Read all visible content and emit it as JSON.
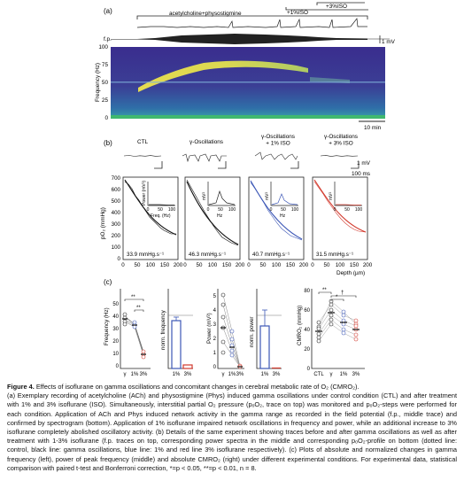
{
  "figure": {
    "panel_a": {
      "label": "(a)",
      "bar_label_ach": "acetylcholine+physostigmine",
      "bar_label_iso1": "+1%ISO",
      "bar_label_iso3": "+3%ISO",
      "fp_label": "f.p.",
      "po2_label": "pO",
      "scale_mv": "1 mV",
      "y_axis_label": "Frequency (Hz)",
      "y_ticks": [
        "100",
        "75",
        "50",
        "25",
        "0"
      ],
      "scale_time": "10 min"
    },
    "panel_b": {
      "label": "(b)",
      "conditions": [
        "CTL",
        "γ-Oscillations",
        "γ-Oscillations\n+ 1% ISO",
        "γ-Oscillations\n+ 3% ISO"
      ],
      "scale_mv": "1 mV",
      "scale_ms": "100 ms",
      "y_axis_label": "pO₂ (mmHg)",
      "y_ticks": [
        "700",
        "600",
        "500",
        "400",
        "300",
        "200",
        "100",
        "0"
      ],
      "x_ticks": [
        "0",
        "50",
        "100",
        "150",
        "200"
      ],
      "x_label": "Depth (µm)",
      "inset_ylabel_first": "Power (mV²)",
      "inset_ylabel": "mV²",
      "inset_xlabel_first": "Freq. (Hz)",
      "inset_xlabel": "Hz",
      "inset_ticks": [
        "0",
        "50",
        "100"
      ],
      "cmro2_values": [
        "33.9 mmHg.s⁻¹",
        "46.3 mmHg.s⁻¹",
        "40.7 mmHg.s⁻¹",
        "31.5 mmHg.s⁻¹"
      ]
    },
    "panel_c": {
      "label": "(c)",
      "p1_ylabel": "Frequency (Hz)",
      "p1_yticks": [
        "50",
        "40",
        "30",
        "20",
        "10",
        "0"
      ],
      "p1_xticks": [
        "γ",
        "1%",
        "3%"
      ],
      "p2_ylabel": "norm. frequency",
      "p2_xticks": [
        "1%",
        "3%"
      ],
      "p3_ylabel": "Power (mV²)",
      "p3_yticks": [
        "5",
        "4",
        "3",
        "2",
        "1",
        "0"
      ],
      "p3_xticks": [
        "γ",
        "1%",
        "3%"
      ],
      "p4_ylabel": "norm. power",
      "p4_xticks": [
        "1%",
        "3%"
      ],
      "p5_ylabel": "CMRO₂ (mmHg)",
      "p5_yticks": [
        "80",
        "60",
        "40",
        "20",
        "0"
      ],
      "p5_xticks": [
        "CTL",
        "γ",
        "1%",
        "3%"
      ],
      "sig_double": "**",
      "sig_single": "*",
      "sig_dagger": "†"
    }
  },
  "caption": {
    "title": "Figure 4.",
    "title_rest": " Effects of isoflurane on gamma oscillations and concomitant changes in cerebral metabolic rate of O₂ (CMRO₂).",
    "body": "(a) Exemplary recording of acetylcholine (ACh) and physostigmine (Phys) induced gamma oscillations under control condition (CTL) and after treatment with 1% and 3% isoflurane (ISO). Simultaneously, interstitial partial O₂ pressure (pₒO₂, trace on top) was monitored and pₒO₂-steps were performed for each condition. Application of ACh and Phys induced network activity in the gamma range as recorded in the field potential (f.p., middle trace) and confirmed by spectrogram (bottom). Application of 1% isoflurane impaired network oscillations in frequency and power, while an additional increase to 3% isoflurane completely abolished oscillatory activity. (b) Details of the same experiment showing traces before and after gamma oscillations as well as after treatment with 1-3% isoflurane (f.p. traces on top, corresponding power spectra in the middle and corresponding pₒO₂-profile on bottom (dotted line: control, black line: gamma oscillations, blue line: 1% and red line 3% isoflurane respectively). (c) Plots of absolute and normalized changes in gamma frequency (left), power of peak frequency (middle) and absolute CMRO₂ (right) under different experimental conditions. For experimental data, statistical comparison with paired t-test and Bonferroni correction, *=p < 0.05, **=p < 0.01, n = 8."
  }
}
